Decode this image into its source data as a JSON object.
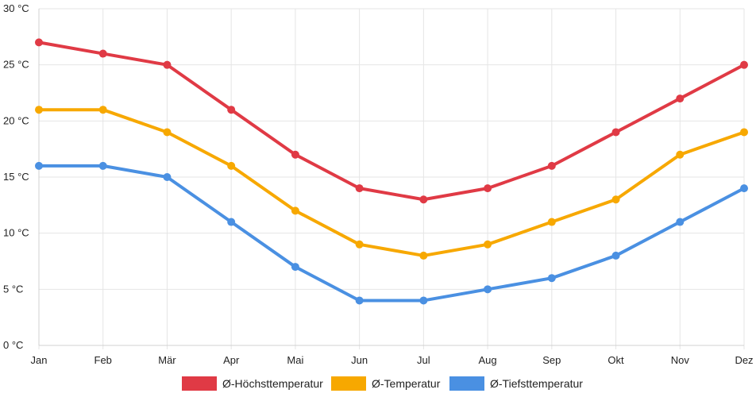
{
  "chart_data": {
    "type": "line",
    "title": "",
    "xlabel": "",
    "ylabel": "",
    "categories": [
      "Jan",
      "Feb",
      "Mär",
      "Apr",
      "Mai",
      "Jun",
      "Jul",
      "Aug",
      "Sep",
      "Okt",
      "Nov",
      "Dez"
    ],
    "ylim": [
      0,
      30
    ],
    "y_ticks": [
      0,
      5,
      10,
      15,
      20,
      25,
      30
    ],
    "y_unit": "°C",
    "y_tick_labels": [
      "0 °C",
      "5 °C",
      "10 °C",
      "15 °C",
      "20 °C",
      "25 °C",
      "30 °C"
    ],
    "grid": true,
    "legend_position": "bottom-center",
    "series": [
      {
        "name": "Ø-Höchsttemperatur",
        "color": "#e03a45",
        "values": [
          27,
          26,
          25,
          21,
          17,
          14,
          13,
          14,
          16,
          19,
          22,
          25
        ]
      },
      {
        "name": "Ø-Temperatur",
        "color": "#f7a800",
        "values": [
          21,
          21,
          19,
          16,
          12,
          9,
          8,
          9,
          11,
          13,
          17,
          19
        ]
      },
      {
        "name": "Ø-Tiefsttemperatur",
        "color": "#4a90e2",
        "values": [
          16,
          16,
          15,
          11,
          7,
          4,
          4,
          5,
          6,
          8,
          11,
          14
        ]
      }
    ]
  }
}
